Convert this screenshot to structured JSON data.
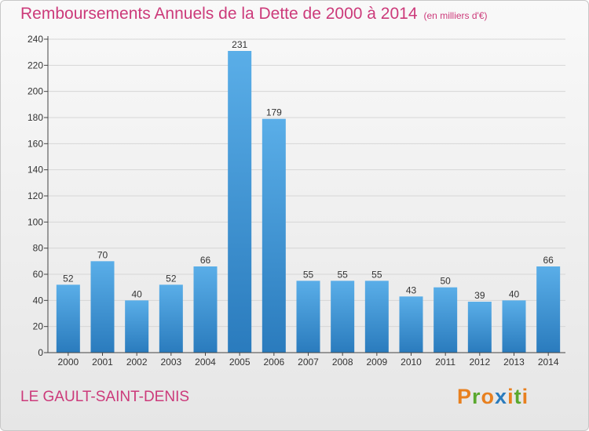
{
  "header": {
    "title": "Remboursements Annuels de la Dette de 2000 à 2014",
    "subtitle": "(en milliers d'€)"
  },
  "footer": {
    "city": "LE GAULT-SAINT-DENIS",
    "logo_text": "Proxiti"
  },
  "colors": {
    "title": "#cc3a7a",
    "bar_light": "#5aaee8",
    "bar_dark": "#2a7bbd",
    "grid": "#d6d6d6"
  },
  "chart_data": {
    "type": "bar",
    "title": "Remboursements Annuels de la Dette de 2000 à 2014",
    "subtitle": "(en milliers d'€)",
    "categories": [
      "2000",
      "2001",
      "2002",
      "2003",
      "2004",
      "2005",
      "2006",
      "2007",
      "2008",
      "2009",
      "2010",
      "2011",
      "2012",
      "2013",
      "2014"
    ],
    "values": [
      52,
      70,
      40,
      52,
      66,
      231,
      179,
      55,
      55,
      55,
      43,
      50,
      39,
      40,
      66
    ],
    "ylim": [
      0,
      240
    ],
    "yticks": [
      0,
      20,
      40,
      60,
      80,
      100,
      120,
      140,
      160,
      180,
      200,
      220,
      240
    ],
    "grid": true,
    "legend": "none"
  }
}
